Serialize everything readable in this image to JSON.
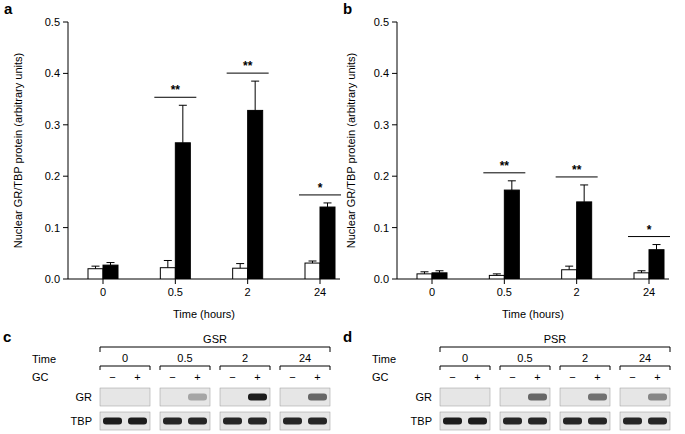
{
  "chart_data": [
    {
      "type": "bar",
      "title": "a",
      "x_label": "Time (hours)",
      "y_label": "Nuclear GR/TBP protein (arbitrary units)",
      "categories": [
        "0",
        "0.5",
        "2",
        "24"
      ],
      "series": [
        {
          "color": "#ffffff",
          "values": [
            0.02,
            0.022,
            0.021,
            0.031
          ],
          "errors": [
            0.005,
            0.014,
            0.009,
            0.004
          ]
        },
        {
          "color": "#000000",
          "values": [
            0.027,
            0.265,
            0.328,
            0.14
          ],
          "errors": [
            0.005,
            0.073,
            0.057,
            0.008
          ]
        }
      ],
      "ylim": [
        0,
        0.5
      ],
      "yticks": [
        {
          "value": 0,
          "label": "0.0"
        },
        0.1,
        0.2,
        0.3,
        0.4,
        0.5
      ],
      "annotations": [
        {
          "text": "**",
          "category": "0.5"
        },
        {
          "text": "**",
          "category": "2"
        },
        {
          "text": "*",
          "category": "24"
        }
      ]
    },
    {
      "type": "bar",
      "title": "b",
      "x_label": "Time (hours)",
      "y_label": "Nuclear GR/TBP protein (arbitrary units)",
      "categories": [
        "0",
        "0.5",
        "2",
        "24"
      ],
      "series": [
        {
          "color": "#ffffff",
          "values": [
            0.01,
            0.007,
            0.018,
            0.012
          ],
          "errors": [
            0.004,
            0.003,
            0.007,
            0.004
          ]
        },
        {
          "color": "#000000",
          "values": [
            0.012,
            0.173,
            0.15,
            0.057
          ],
          "errors": [
            0.004,
            0.018,
            0.033,
            0.01
          ]
        }
      ],
      "ylim": [
        0,
        0.5
      ],
      "yticks": [
        {
          "value": 0,
          "label": "0.0"
        },
        0.1,
        0.2,
        0.3,
        0.4,
        0.5
      ],
      "annotations": [
        {
          "text": "**",
          "category": "0.5"
        },
        {
          "text": "**",
          "category": "2"
        },
        {
          "text": "*",
          "category": "24"
        }
      ]
    }
  ],
  "blots": [
    {
      "label": "c",
      "title": "GSR",
      "time_label": "Time",
      "times": [
        "0",
        "0.5",
        "2",
        "24"
      ],
      "treatment_label": "GC",
      "lanes": [
        "−",
        "+"
      ],
      "rows": [
        {
          "label": "GR",
          "intensity": [
            0,
            0,
            0,
            0.3,
            0,
            0.95,
            0,
            0.6
          ]
        },
        {
          "label": "TBP",
          "intensity": [
            0.95,
            0.95,
            0.9,
            0.9,
            0.9,
            0.9,
            0.9,
            0.9
          ]
        }
      ]
    },
    {
      "label": "d",
      "title": "PSR",
      "time_label": "Time",
      "times": [
        "0",
        "0.5",
        "2",
        "24"
      ],
      "treatment_label": "GC",
      "lanes": [
        "−",
        "+"
      ],
      "rows": [
        {
          "label": "GR",
          "intensity": [
            0,
            0,
            0,
            0.6,
            0,
            0.55,
            0,
            0.45
          ]
        },
        {
          "label": "TBP",
          "intensity": [
            0.95,
            0.95,
            0.9,
            0.9,
            0.9,
            0.9,
            0.9,
            0.9
          ]
        }
      ]
    }
  ]
}
